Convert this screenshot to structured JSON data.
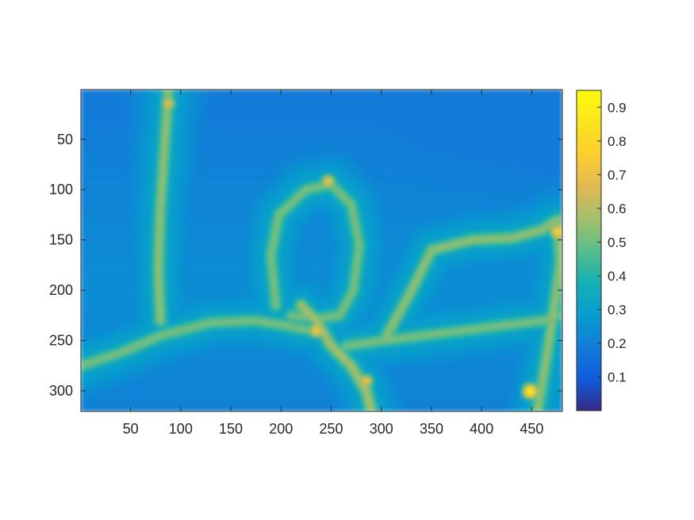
{
  "chart_data": {
    "type": "heatmap",
    "title": "",
    "xlabel": "",
    "ylabel": "",
    "x_range": [
      1,
      480
    ],
    "y_range": [
      1,
      320
    ],
    "y_direction": "reversed",
    "x_ticks": [
      50,
      100,
      150,
      200,
      250,
      300,
      350,
      400,
      450
    ],
    "x_tick_labels": [
      "50",
      "100",
      "150",
      "200",
      "250",
      "300",
      "350",
      "400",
      "450"
    ],
    "y_ticks": [
      50,
      100,
      150,
      200,
      250,
      300
    ],
    "y_tick_labels": [
      "50",
      "100",
      "150",
      "200",
      "250",
      "300"
    ],
    "colormap": "parula",
    "colorbar": {
      "placement": "right",
      "range": [
        0,
        0.95
      ],
      "ticks": [
        0.1,
        0.2,
        0.3,
        0.4,
        0.5,
        0.6,
        0.7,
        0.8,
        0.9
      ],
      "tick_labels": [
        "0.1",
        "0.2",
        "0.3",
        "0.4",
        "0.5",
        "0.6",
        "0.7",
        "0.8",
        "0.9"
      ]
    },
    "background_level": 0.18,
    "structures": [
      {
        "name": "left-pole",
        "level": 0.55,
        "points": [
          [
            88,
            0
          ],
          [
            84,
            60
          ],
          [
            80,
            120
          ],
          [
            78,
            180
          ],
          [
            80,
            230
          ]
        ]
      },
      {
        "name": "left-branch",
        "level": 0.52,
        "points": [
          [
            0,
            275
          ],
          [
            40,
            262
          ],
          [
            80,
            245
          ],
          [
            130,
            232
          ],
          [
            175,
            230
          ],
          [
            205,
            235
          ],
          [
            240,
            242
          ]
        ]
      },
      {
        "name": "bird-outline",
        "level": 0.52,
        "points": [
          [
            195,
            215
          ],
          [
            190,
            165
          ],
          [
            198,
            125
          ],
          [
            225,
            100
          ],
          [
            250,
            95
          ],
          [
            270,
            115
          ],
          [
            278,
            155
          ],
          [
            272,
            200
          ],
          [
            258,
            225
          ],
          [
            235,
            228
          ],
          [
            210,
            225
          ]
        ]
      },
      {
        "name": "bird-body",
        "level": 0.58,
        "points": [
          [
            220,
            215
          ],
          [
            235,
            230
          ],
          [
            250,
            255
          ],
          [
            270,
            275
          ],
          [
            285,
            300
          ],
          [
            290,
            320
          ]
        ]
      },
      {
        "name": "right-branch",
        "level": 0.52,
        "points": [
          [
            265,
            255
          ],
          [
            300,
            250
          ],
          [
            340,
            245
          ],
          [
            380,
            240
          ],
          [
            420,
            235
          ],
          [
            460,
            230
          ],
          [
            475,
            225
          ]
        ]
      },
      {
        "name": "right-loop",
        "level": 0.55,
        "points": [
          [
            305,
            245
          ],
          [
            330,
            200
          ],
          [
            350,
            160
          ],
          [
            390,
            150
          ],
          [
            430,
            148
          ],
          [
            460,
            140
          ],
          [
            475,
            130
          ],
          [
            478,
            170
          ],
          [
            470,
            230
          ],
          [
            462,
            280
          ],
          [
            455,
            320
          ]
        ]
      }
    ],
    "hotspots": [
      {
        "name": "bird-head",
        "x": 247,
        "y": 92,
        "level": 0.72
      },
      {
        "name": "pole-top",
        "x": 88,
        "y": 15,
        "level": 0.7
      },
      {
        "name": "bird-feet",
        "x": 235,
        "y": 240,
        "level": 0.75
      },
      {
        "name": "branch-joint",
        "x": 475,
        "y": 142,
        "level": 0.8
      },
      {
        "name": "bottom-right-peak",
        "x": 448,
        "y": 300,
        "level": 0.92
      },
      {
        "name": "trunk-base",
        "x": 285,
        "y": 290,
        "level": 0.72
      }
    ]
  }
}
